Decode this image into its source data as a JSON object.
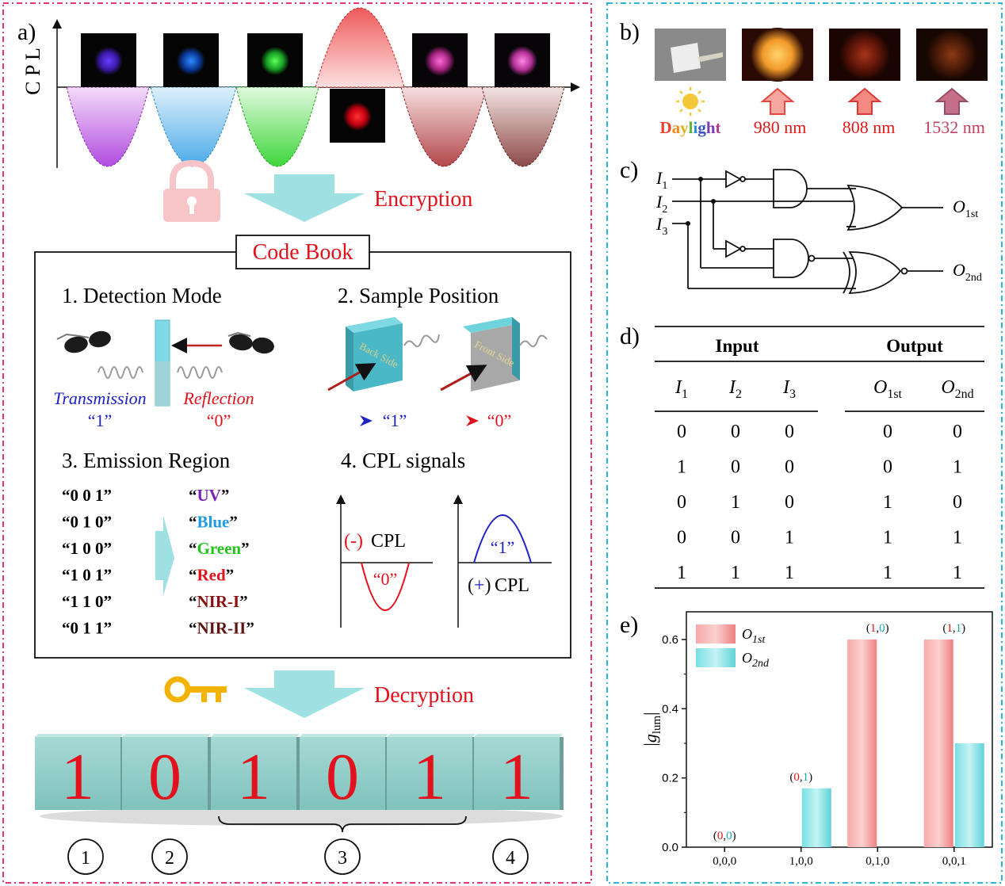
{
  "panel_labels": {
    "a": "a)",
    "b": "b)",
    "c": "c)",
    "d": "d)",
    "e": "e)"
  },
  "panel_a": {
    "axis_label": "C P L",
    "encryption": "Encryption",
    "decryption": "Decryption",
    "code_book_title": "Code Book",
    "sections": {
      "detection_mode": "1. Detection Mode",
      "sample_position": "2. Sample Position",
      "emission_region": "3. Emission Region",
      "cpl_signals": "4. CPL signals"
    },
    "transmission": "Transmission",
    "reflection": "Reflection",
    "code_one": "“1”",
    "code_zero": "“0”",
    "back_side": "Back Side",
    "front_side": "Front Side",
    "emission_codes": [
      {
        "code": "“0   0   1”",
        "region": "UV",
        "color": "#7b22b8"
      },
      {
        "code": "“0   1   0”",
        "region": "Blue",
        "color": "#1e9be0"
      },
      {
        "code": "“1   0   0”",
        "region": "Green",
        "color": "#22c51d"
      },
      {
        "code": "“1   0   1”",
        "region": "Red",
        "color": "#e3111b"
      },
      {
        "code": "“1   1   0”",
        "region": "NIR-I",
        "color": "#8a0f10"
      },
      {
        "code": "“0   1   1”",
        "region": "NIR-II",
        "color": "#5e1512"
      }
    ],
    "neg_cpl": "CPL",
    "neg_sign": "(-)",
    "pos_cpl": "CPL",
    "pos_sign": "(+)",
    "blocks": [
      "1",
      "0",
      "1",
      "0",
      "1",
      "1"
    ],
    "circles": [
      "1",
      "2",
      "3",
      "4"
    ],
    "colors": {
      "pink_frame": "#e0356e",
      "teal": "#9fe0e3",
      "red": "#e3111b",
      "blue": "#1e22c4"
    }
  },
  "panel_b": {
    "labels": [
      "Daylight",
      "980 nm",
      "808 nm",
      "1532 nm"
    ],
    "colors": {
      "daylight_sun": "#f3c93a",
      "red": "#e01a1a",
      "arrow980": "#f05a50",
      "arrow808": "#e8473f",
      "arrow1532": "#c4708a"
    }
  },
  "panel_c": {
    "inputs": [
      "I",
      "I",
      "I"
    ],
    "input_subs": [
      "1",
      "2",
      "3"
    ],
    "outputs": [
      "O",
      "O"
    ],
    "output_subs": [
      "1st",
      "2nd"
    ]
  },
  "panel_d": {
    "group_input": "Input",
    "group_output": "Output",
    "col_heads": [
      "I",
      "I",
      "I",
      "O",
      "O"
    ],
    "col_subs": [
      "1",
      "2",
      "3",
      "1st",
      "2nd"
    ],
    "rows": [
      [
        "0",
        "0",
        "0",
        "0",
        "0"
      ],
      [
        "1",
        "0",
        "0",
        "0",
        "1"
      ],
      [
        "0",
        "1",
        "0",
        "1",
        "0"
      ],
      [
        "0",
        "0",
        "1",
        "1",
        "1"
      ],
      [
        "1",
        "1",
        "1",
        "1",
        "1"
      ]
    ]
  },
  "chart_data": {
    "type": "bar",
    "categories": [
      "0,0,0",
      "1,0,0",
      "0,1,0",
      "0,0,1"
    ],
    "series": [
      {
        "name": "O1st",
        "values": [
          0,
          0,
          0.6,
          0.6
        ],
        "color": "#f08a8a"
      },
      {
        "name": "O2nd",
        "values": [
          0,
          0.17,
          0,
          0.3
        ],
        "color": "#7fe0e4"
      }
    ],
    "legend": [
      {
        "main": "O",
        "sub": "1st"
      },
      {
        "main": "O",
        "sub": "2nd"
      }
    ],
    "ylabel_main": "|g",
    "ylabel_sub": "lum",
    "ylabel_end": "|",
    "ylim": [
      0,
      0.68
    ],
    "yticks": [
      "0.0",
      "0.2",
      "0.4",
      "0.6"
    ],
    "annotations": [
      {
        "first": "0",
        "second": "0"
      },
      {
        "first": "0",
        "second": "1"
      },
      {
        "first": "1",
        "second": "0"
      },
      {
        "first": "1",
        "second": "1"
      }
    ],
    "legend_position": "top-left",
    "grid": false
  }
}
